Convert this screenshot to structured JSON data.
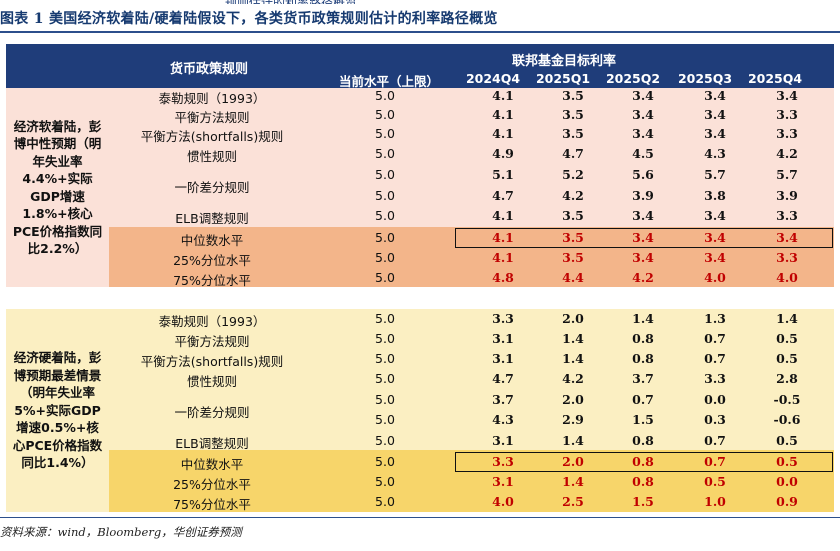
{
  "caption": "图表 1   美国经济软着陆/硬着陆假设下，各类货币政策规则估计的利率路径概览",
  "top_cut_text": "规则估计的利率路径概览",
  "header": {
    "rules_col": "货币政策规则",
    "group_title": "联邦基金目标利率",
    "columns": [
      "当前水平（上限）",
      "2024Q4",
      "2025Q1",
      "2025Q2",
      "2025Q3",
      "2025Q4"
    ]
  },
  "soft": {
    "scenario": "经济软着陆，彭博中性预期（明年失业率4.4%+实际GDP增速1.8%+核心PCE价格指数同比2.2%）",
    "rows": [
      {
        "rule": "泰勒规则（1993）",
        "cur": "5.0",
        "v": [
          "4.1",
          "3.5",
          "3.4",
          "3.4",
          "3.4"
        ]
      },
      {
        "rule": "平衡方法规则",
        "cur": "5.0",
        "v": [
          "4.1",
          "3.5",
          "3.4",
          "3.4",
          "3.3"
        ]
      },
      {
        "rule": "平衡方法(shortfalls)规则",
        "cur": "5.0",
        "v": [
          "4.1",
          "3.5",
          "3.4",
          "3.4",
          "3.3"
        ]
      },
      {
        "rule": "惯性规则",
        "cur": "5.0",
        "v": [
          "4.9",
          "4.7",
          "4.5",
          "4.3",
          "4.2"
        ]
      },
      {
        "rule": "一阶差分规则",
        "cur": "5.0",
        "v": [
          "5.1",
          "5.2",
          "5.6",
          "5.7",
          "5.7"
        ]
      },
      {
        "rule": "",
        "cur": "5.0",
        "v": [
          "4.7",
          "4.2",
          "3.9",
          "3.8",
          "3.9"
        ]
      },
      {
        "rule": "ELB调整规则",
        "cur": "5.0",
        "v": [
          "4.1",
          "3.5",
          "3.4",
          "3.4",
          "3.3"
        ]
      }
    ],
    "stats": [
      {
        "rule": "中位数水平",
        "cur": "5.0",
        "v": [
          "4.1",
          "3.5",
          "3.4",
          "3.4",
          "3.4"
        ]
      },
      {
        "rule": "25%分位水平",
        "cur": "5.0",
        "v": [
          "4.1",
          "3.5",
          "3.4",
          "3.4",
          "3.3"
        ]
      },
      {
        "rule": "75%分位水平",
        "cur": "5.0",
        "v": [
          "4.8",
          "4.4",
          "4.2",
          "4.0",
          "4.0"
        ]
      }
    ]
  },
  "hard": {
    "scenario": "经济硬着陆，彭博预期最差情景（明年失业率5%+实际GDP增速0.5%+核心PCE价格指数同比1.4%）",
    "rows": [
      {
        "rule": "泰勒规则（1993）",
        "cur": "5.0",
        "v": [
          "3.3",
          "2.0",
          "1.4",
          "1.3",
          "1.4"
        ]
      },
      {
        "rule": "平衡方法规则",
        "cur": "5.0",
        "v": [
          "3.1",
          "1.4",
          "0.8",
          "0.7",
          "0.5"
        ]
      },
      {
        "rule": "平衡方法(shortfalls)规则",
        "cur": "5.0",
        "v": [
          "3.1",
          "1.4",
          "0.8",
          "0.7",
          "0.5"
        ]
      },
      {
        "rule": "惯性规则",
        "cur": "5.0",
        "v": [
          "4.7",
          "4.2",
          "3.7",
          "3.3",
          "2.8"
        ]
      },
      {
        "rule": "一阶差分规则",
        "cur": "5.0",
        "v": [
          "3.7",
          "2.0",
          "0.7",
          "0.0",
          "-0.5"
        ]
      },
      {
        "rule": "",
        "cur": "5.0",
        "v": [
          "4.3",
          "2.9",
          "1.5",
          "0.3",
          "-0.6"
        ]
      },
      {
        "rule": "ELB调整规则",
        "cur": "5.0",
        "v": [
          "3.1",
          "1.4",
          "0.8",
          "0.7",
          "0.5"
        ]
      }
    ],
    "stats": [
      {
        "rule": "中位数水平",
        "cur": "5.0",
        "v": [
          "3.3",
          "2.0",
          "0.8",
          "0.7",
          "0.5"
        ]
      },
      {
        "rule": "25%分位水平",
        "cur": "5.0",
        "v": [
          "3.1",
          "1.4",
          "0.8",
          "0.5",
          "0.0"
        ]
      },
      {
        "rule": "75%分位水平",
        "cur": "5.0",
        "v": [
          "4.0",
          "2.5",
          "1.5",
          "1.0",
          "0.9"
        ]
      }
    ]
  },
  "source": "资料来源：wind，Bloomberg，华创证券预测",
  "colors": {
    "header": "#1f3d7a",
    "soft_light": "#fbe1d8",
    "soft_stat": "#f3b58a",
    "hard_light": "#fbefc2",
    "hard_stat": "#f7d56a",
    "stat_text": "#c00000"
  }
}
